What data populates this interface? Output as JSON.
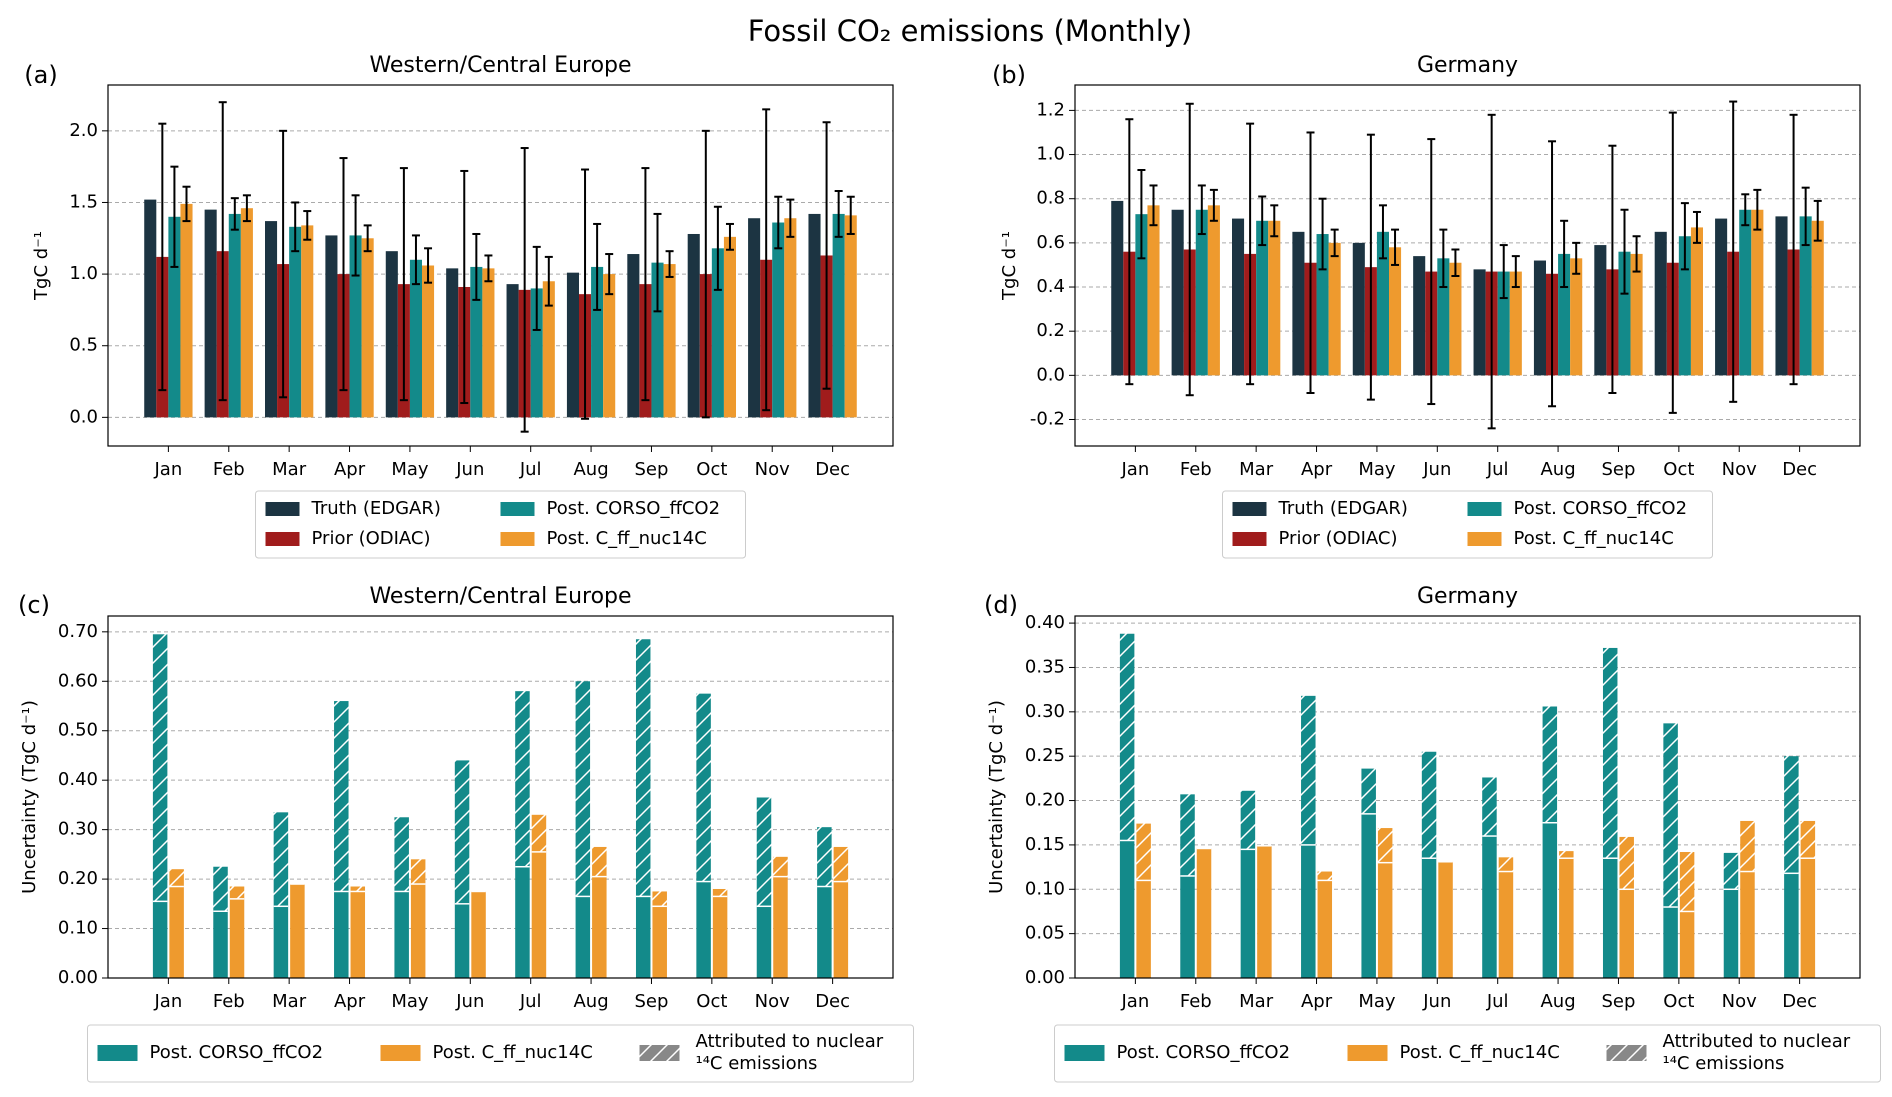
{
  "title": "Fossil CO₂ emissions (Monthly)",
  "chart_data": [
    {
      "type": "bar",
      "panel": "(a)",
      "title": "Western/Central Europe",
      "ylabel": "TgC d⁻¹",
      "categories": [
        "Jan",
        "Feb",
        "Mar",
        "Apr",
        "May",
        "Jun",
        "Jul",
        "Aug",
        "Sep",
        "Oct",
        "Nov",
        "Dec"
      ],
      "ylim": [
        -0.2,
        2.32
      ],
      "yticks": [
        {
          "value": 0,
          "label": "0.0"
        },
        0.5,
        {
          "value": 1,
          "label": "1.0"
        },
        1.5,
        {
          "value": 2,
          "label": "2.0"
        }
      ],
      "grid": true,
      "series": [
        {
          "name": "Truth (EDGAR)",
          "color": "#1c3442",
          "values": [
            1.52,
            1.45,
            1.37,
            1.27,
            1.16,
            1.04,
            0.93,
            1.01,
            1.14,
            1.28,
            1.39,
            1.42
          ]
        },
        {
          "name": "Prior (ODIAC)",
          "color": "#a01c1c",
          "values": [
            1.12,
            1.16,
            1.07,
            1.0,
            0.93,
            0.91,
            0.89,
            0.86,
            0.93,
            1.0,
            1.1,
            1.13
          ],
          "errors": [
            0.93,
            1.04,
            0.93,
            0.81,
            0.81,
            0.81,
            0.99,
            0.87,
            0.81,
            1.0,
            1.05,
            0.93
          ]
        },
        {
          "name": "Post. CORSO_ffCO2",
          "color": "#138a8a",
          "values": [
            1.4,
            1.42,
            1.33,
            1.27,
            1.1,
            1.05,
            0.9,
            1.05,
            1.08,
            1.18,
            1.36,
            1.42
          ],
          "errors": [
            0.35,
            0.11,
            0.17,
            0.28,
            0.17,
            0.23,
            0.29,
            0.3,
            0.34,
            0.29,
            0.18,
            0.16
          ]
        },
        {
          "name": "Post. C_ff_nuc14C",
          "color": "#ee9a2e",
          "values": [
            1.49,
            1.46,
            1.34,
            1.25,
            1.06,
            1.04,
            0.95,
            1.0,
            1.07,
            1.26,
            1.39,
            1.41
          ],
          "errors": [
            0.12,
            0.09,
            0.1,
            0.09,
            0.12,
            0.09,
            0.17,
            0.14,
            0.09,
            0.09,
            0.13,
            0.13
          ]
        }
      ]
    },
    {
      "type": "bar",
      "panel": "(b)",
      "title": "Germany",
      "ylabel": "TgC d⁻¹",
      "categories": [
        "Jan",
        "Feb",
        "Mar",
        "Apr",
        "May",
        "Jun",
        "Jul",
        "Aug",
        "Sep",
        "Oct",
        "Nov",
        "Dec"
      ],
      "ylim": [
        -0.32,
        1.315
      ],
      "yticks": [
        -0.2,
        {
          "value": 0,
          "label": "0.0"
        },
        0.2,
        0.4,
        0.6,
        0.8,
        {
          "value": 1,
          "label": "1.0"
        },
        1.2
      ],
      "grid": true,
      "series": [
        {
          "name": "Truth (EDGAR)",
          "color": "#1c3442",
          "values": [
            0.79,
            0.75,
            0.71,
            0.65,
            0.6,
            0.54,
            0.48,
            0.52,
            0.59,
            0.65,
            0.71,
            0.72
          ]
        },
        {
          "name": "Prior (ODIAC)",
          "color": "#a01c1c",
          "values": [
            0.56,
            0.57,
            0.55,
            0.51,
            0.49,
            0.47,
            0.47,
            0.46,
            0.48,
            0.51,
            0.56,
            0.57
          ],
          "errors": [
            0.6,
            0.66,
            0.59,
            0.59,
            0.6,
            0.6,
            0.71,
            0.6,
            0.56,
            0.68,
            0.68,
            0.61
          ]
        },
        {
          "name": "Post. CORSO_ffCO2",
          "color": "#138a8a",
          "values": [
            0.73,
            0.75,
            0.7,
            0.64,
            0.65,
            0.53,
            0.47,
            0.55,
            0.56,
            0.63,
            0.75,
            0.72
          ],
          "errors": [
            0.2,
            0.11,
            0.11,
            0.16,
            0.12,
            0.13,
            0.12,
            0.15,
            0.19,
            0.15,
            0.07,
            0.13
          ]
        },
        {
          "name": "Post. C_ff_nuc14C",
          "color": "#ee9a2e",
          "values": [
            0.77,
            0.77,
            0.7,
            0.6,
            0.58,
            0.51,
            0.47,
            0.53,
            0.55,
            0.67,
            0.75,
            0.7
          ],
          "errors": [
            0.09,
            0.07,
            0.07,
            0.06,
            0.08,
            0.06,
            0.07,
            0.07,
            0.08,
            0.07,
            0.09,
            0.09
          ]
        }
      ]
    },
    {
      "type": "stacked_bar",
      "panel": "(c)",
      "title": "Western/Central Europe",
      "ylabel": "Uncertainty (TgC d⁻¹)",
      "categories": [
        "Jan",
        "Feb",
        "Mar",
        "Apr",
        "May",
        "Jun",
        "Jul",
        "Aug",
        "Sep",
        "Oct",
        "Nov",
        "Dec"
      ],
      "ylim": [
        0,
        0.732
      ],
      "yticks": [
        {
          "value": 0,
          "label": "0.00"
        },
        {
          "value": 0.1,
          "label": "0.10"
        },
        {
          "value": 0.2,
          "label": "0.20"
        },
        {
          "value": 0.3,
          "label": "0.30"
        },
        {
          "value": 0.4,
          "label": "0.40"
        },
        {
          "value": 0.5,
          "label": "0.50"
        },
        {
          "value": 0.6,
          "label": "0.60"
        },
        {
          "value": 0.7,
          "label": "0.70"
        }
      ],
      "grid": true,
      "hatch_label": [
        "Attributed to nuclear",
        "¹⁴C emissions"
      ],
      "hatch_color": "#888888",
      "series": [
        {
          "name": "Post. CORSO_ffCO2",
          "color": "#138a8a",
          "values": [
            0.155,
            0.135,
            0.145,
            0.175,
            0.175,
            0.15,
            0.225,
            0.165,
            0.165,
            0.195,
            0.145,
            0.185
          ],
          "hatched_values": [
            0.54,
            0.09,
            0.19,
            0.385,
            0.15,
            0.29,
            0.355,
            0.435,
            0.52,
            0.38,
            0.22,
            0.12
          ]
        },
        {
          "name": "Post. C_ff_nuc14C",
          "color": "#ee9a2e",
          "values": [
            0.185,
            0.16,
            0.19,
            0.175,
            0.19,
            0.175,
            0.255,
            0.205,
            0.145,
            0.165,
            0.205,
            0.195
          ],
          "hatched_values": [
            0.035,
            0.025,
            0,
            0.01,
            0.05,
            0,
            0.075,
            0.06,
            0.03,
            0.015,
            0.04,
            0.07
          ]
        }
      ]
    },
    {
      "type": "stacked_bar",
      "panel": "(d)",
      "title": "Germany",
      "ylabel": "Uncertainty (TgC d⁻¹)",
      "categories": [
        "Jan",
        "Feb",
        "Mar",
        "Apr",
        "May",
        "Jun",
        "Jul",
        "Aug",
        "Sep",
        "Oct",
        "Nov",
        "Dec"
      ],
      "ylim": [
        0,
        0.408
      ],
      "yticks": [
        {
          "value": 0,
          "label": "0.00"
        },
        0.05,
        {
          "value": 0.1,
          "label": "0.10"
        },
        0.15,
        {
          "value": 0.2,
          "label": "0.20"
        },
        0.25,
        {
          "value": 0.3,
          "label": "0.30"
        },
        0.35,
        {
          "value": 0.4,
          "label": "0.40"
        }
      ],
      "grid": true,
      "hatch_label": [
        "Attributed to nuclear",
        "¹⁴C emissions"
      ],
      "hatch_color": "#888888",
      "series": [
        {
          "name": "Post. CORSO_ffCO2",
          "color": "#138a8a",
          "values": [
            0.155,
            0.115,
            0.145,
            0.15,
            0.185,
            0.135,
            0.16,
            0.175,
            0.135,
            0.08,
            0.1,
            0.118
          ],
          "hatched_values": [
            0.233,
            0.092,
            0.066,
            0.168,
            0.051,
            0.12,
            0.066,
            0.131,
            0.237,
            0.207,
            0.041,
            0.132
          ]
        },
        {
          "name": "Post. C_ff_nuc14C",
          "color": "#ee9a2e",
          "values": [
            0.11,
            0.146,
            0.149,
            0.11,
            0.13,
            0.131,
            0.12,
            0.135,
            0.1,
            0.075,
            0.12,
            0.135
          ],
          "hatched_values": [
            0.064,
            0,
            0,
            0.01,
            0.039,
            0,
            0.016,
            0.008,
            0.059,
            0.067,
            0.057,
            0.042
          ]
        }
      ]
    }
  ]
}
